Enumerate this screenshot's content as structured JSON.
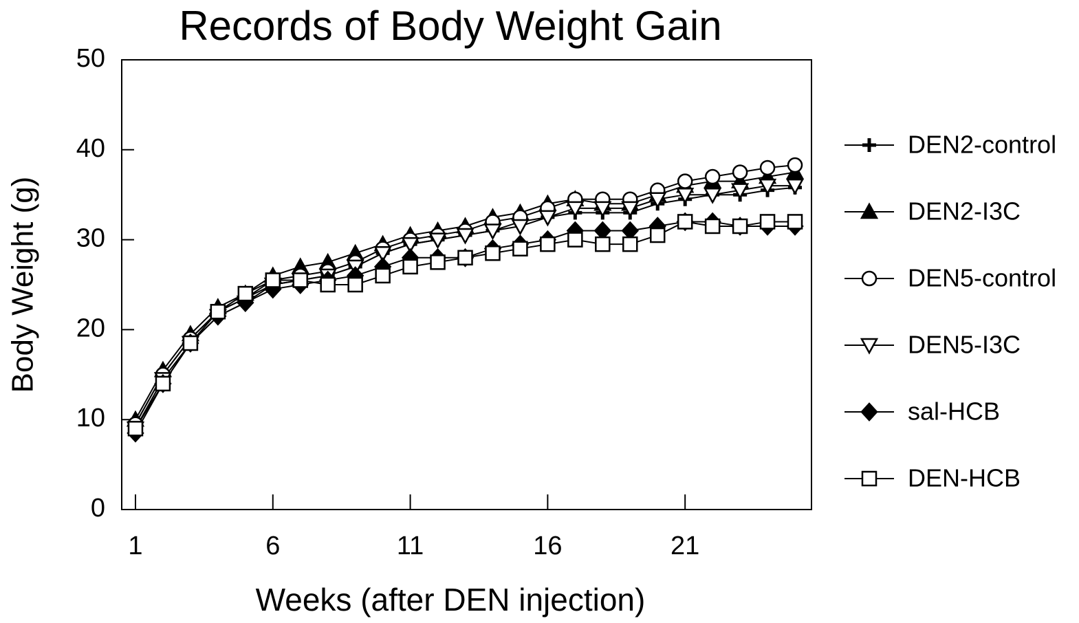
{
  "chart_data": {
    "type": "line",
    "title": "Records of Body Weight Gain",
    "x_label": "Weeks (after DEN injection)",
    "y_label": "Body Weight (g)",
    "x": [
      1,
      2,
      3,
      4,
      5,
      6,
      7,
      8,
      9,
      10,
      11,
      12,
      13,
      14,
      15,
      16,
      17,
      18,
      19,
      20,
      21,
      22,
      23,
      24,
      25
    ],
    "xlim": [
      0.5,
      25.6
    ],
    "xticks": [
      1,
      6,
      11,
      16,
      21
    ],
    "ylim": [
      0,
      50
    ],
    "yticks": [
      0,
      10,
      20,
      30,
      40,
      50
    ],
    "grid": false,
    "legend": "right",
    "series": [
      {
        "name": "DEN2-control",
        "color": "#000000",
        "marker": "plus",
        "values": [
          9.5,
          15,
          19,
          22,
          23.5,
          25,
          25.5,
          26,
          27,
          28.5,
          29.5,
          30,
          30.5,
          31,
          32,
          32.5,
          33,
          33,
          33,
          34,
          34.5,
          35,
          35,
          35.5,
          35.8
        ]
      },
      {
        "name": "DEN2-I3C",
        "color": "#000000",
        "marker": "triangle",
        "values": [
          10,
          15.5,
          19.5,
          22.5,
          24,
          26,
          27,
          27.5,
          28.5,
          29.5,
          30.5,
          31,
          31.5,
          32.5,
          33,
          34,
          34.5,
          34,
          34,
          35,
          36,
          36.5,
          36.5,
          37,
          37.5
        ]
      },
      {
        "name": "DEN5-control",
        "color": "#000000",
        "marker": "circle",
        "values": [
          9.5,
          15,
          19,
          22,
          23.5,
          25.5,
          26,
          26.5,
          27.5,
          29,
          30,
          30.5,
          31,
          32,
          32.5,
          33.5,
          34.5,
          34.5,
          34.5,
          35.5,
          36.5,
          37,
          37.5,
          38,
          38.3
        ]
      },
      {
        "name": "DEN5-I3C",
        "color": "#000000",
        "marker": "triangle-down",
        "values": [
          9,
          14.5,
          18.5,
          21.5,
          23,
          25,
          25.5,
          26,
          27,
          28.5,
          29.5,
          30,
          30.5,
          31,
          31.5,
          32.5,
          33.5,
          33.5,
          33.5,
          34.5,
          35,
          35,
          35.5,
          36,
          36
        ]
      },
      {
        "name": "sal-HCB",
        "color": "#000000",
        "marker": "diamond",
        "values": [
          8.5,
          14,
          18.5,
          21.5,
          23,
          24.5,
          25,
          25.5,
          26,
          27,
          28,
          28,
          28,
          29,
          29.5,
          30,
          31,
          31,
          31,
          31.5,
          32,
          32,
          31.5,
          31.5,
          31.5
        ]
      },
      {
        "name": "DEN-HCB",
        "color": "#000000",
        "marker": "square",
        "values": [
          9,
          14,
          18.5,
          22,
          24,
          25.5,
          25.5,
          25,
          25,
          26,
          27,
          27.5,
          28,
          28.5,
          29,
          29.5,
          30,
          29.5,
          29.5,
          30.5,
          32,
          31.5,
          31.5,
          32,
          32
        ]
      }
    ]
  }
}
